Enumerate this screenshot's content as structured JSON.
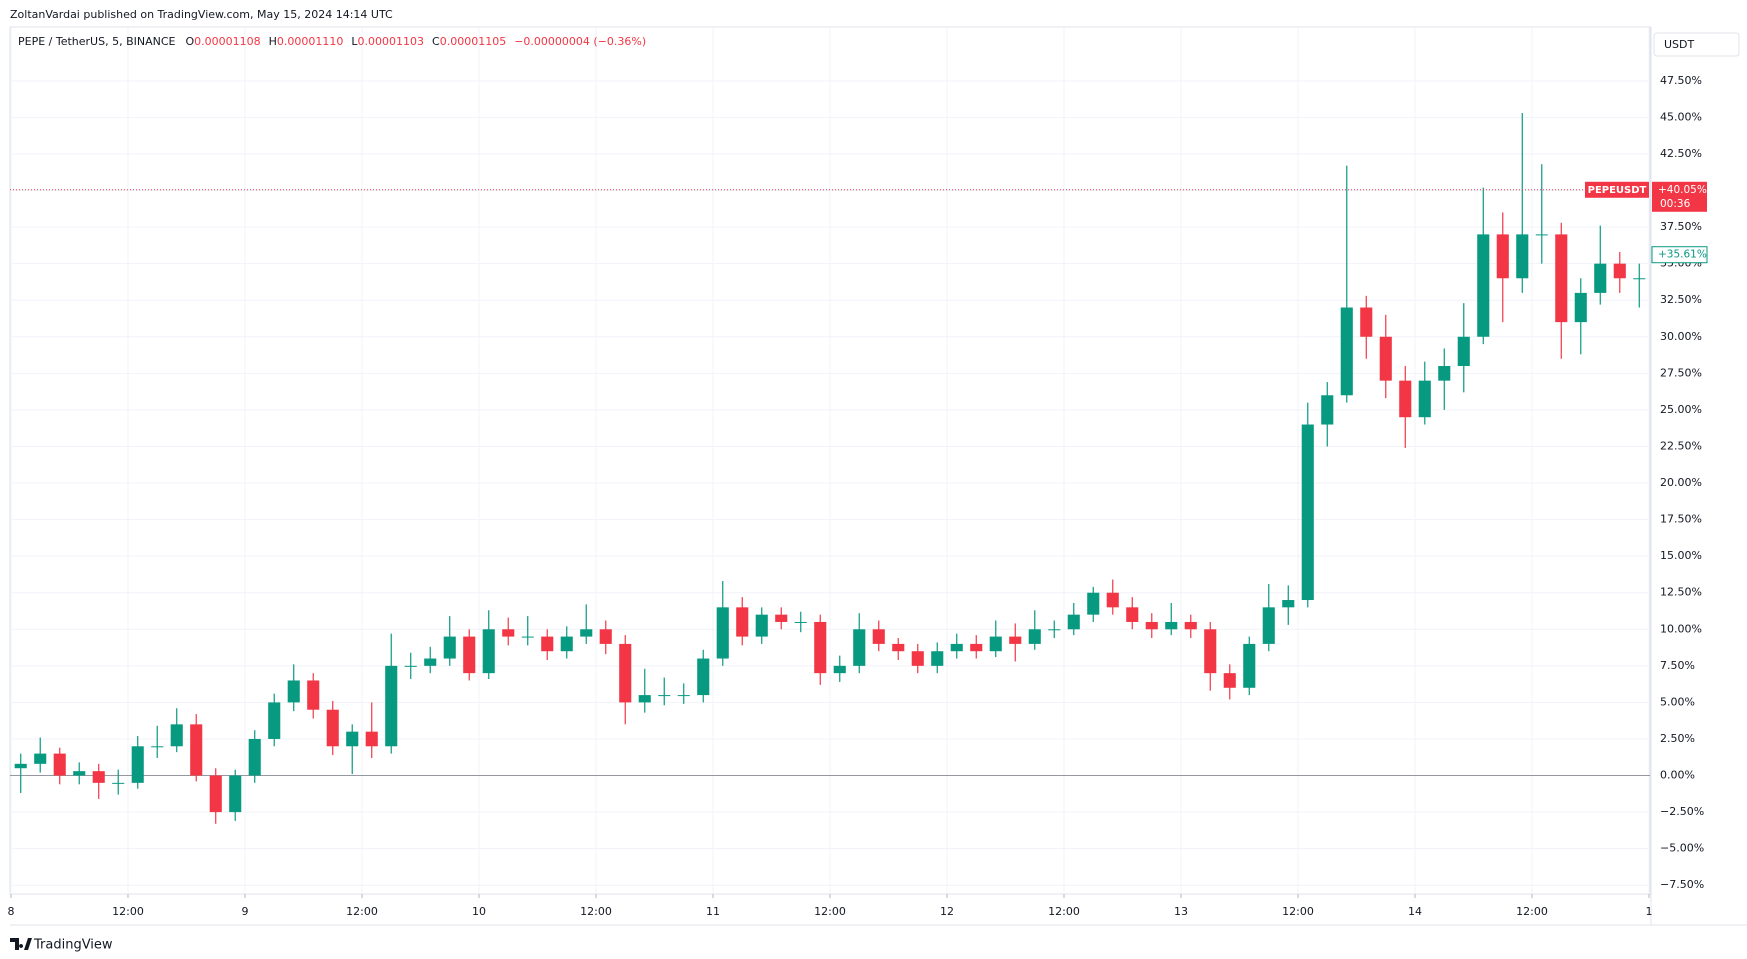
{
  "header": {
    "publisher": "ZoltanVardai published on TradingView.com, May 15, 2024 14:14 UTC",
    "symbol": "PEPE / TetherUS, 5, BINANCE",
    "ohlc": [
      {
        "key": "O",
        "value": "0.00001108"
      },
      {
        "key": "H",
        "value": "0.00001110"
      },
      {
        "key": "L",
        "value": "0.00001103"
      },
      {
        "key": "C",
        "value": "0.00001105"
      }
    ],
    "change": "−0.00000004 (−0.36%)",
    "currency": "USDT",
    "brand": "TradingView"
  },
  "chart_data": {
    "type": "candlestick",
    "up_color": "#089981",
    "down_color": "#f23645",
    "grid": true,
    "xlim": [
      -0.1,
      168.1
    ],
    "ylim": [
      -8.1,
      51.18
    ],
    "xticks": [
      {
        "value": 0,
        "label": "8"
      },
      {
        "value": 12,
        "label": "12:00"
      },
      {
        "value": 24,
        "label": "9"
      },
      {
        "value": 36,
        "label": "12:00"
      },
      {
        "value": 48,
        "label": "10"
      },
      {
        "value": 60,
        "label": "12:00"
      },
      {
        "value": 72,
        "label": "11"
      },
      {
        "value": 84,
        "label": "12:00"
      },
      {
        "value": 96,
        "label": "12"
      },
      {
        "value": 108,
        "label": "12:00"
      },
      {
        "value": 120,
        "label": "13"
      },
      {
        "value": 132,
        "label": "12:00"
      },
      {
        "value": 144,
        "label": "14"
      },
      {
        "value": 156,
        "label": "12:00"
      },
      {
        "value": 168,
        "label": "1"
      }
    ],
    "yticks": [
      {
        "value": -7.5,
        "label": "−7.50%"
      },
      {
        "value": -5,
        "label": "−5.00%"
      },
      {
        "value": -2.5,
        "label": "−2.50%"
      },
      {
        "value": 0,
        "label": "0.00%"
      },
      {
        "value": 2.5,
        "label": "2.50%"
      },
      {
        "value": 5,
        "label": "5.00%"
      },
      {
        "value": 7.5,
        "label": "7.50%"
      },
      {
        "value": 10,
        "label": "10.00%"
      },
      {
        "value": 12.5,
        "label": "12.50%"
      },
      {
        "value": 15,
        "label": "15.00%"
      },
      {
        "value": 17.5,
        "label": "17.50%"
      },
      {
        "value": 20,
        "label": "20.00%"
      },
      {
        "value": 22.5,
        "label": "22.50%"
      },
      {
        "value": 25,
        "label": "25.00%"
      },
      {
        "value": 27.5,
        "label": "27.50%"
      },
      {
        "value": 30,
        "label": "30.00%"
      },
      {
        "value": 32.5,
        "label": "32.50%"
      },
      {
        "value": 35,
        "label": "35.00%"
      },
      {
        "value": 37.5,
        "label": "37.50%"
      },
      {
        "value": 40,
        "label": "40.00%"
      },
      {
        "value": 42.5,
        "label": "42.50%"
      },
      {
        "value": 45,
        "label": "45.00%"
      },
      {
        "value": 47.5,
        "label": "47.50%"
      }
    ],
    "baseline": 0,
    "price_labels": [
      {
        "name": "PEPEUSDT",
        "value": 40.05,
        "label": "+40.05%",
        "time": "00:36",
        "color": "#f23645"
      },
      {
        "value": 35.61,
        "label": "+35.61%",
        "color": "#089981"
      }
    ],
    "x": [
      1,
      3,
      5,
      7,
      9,
      11,
      13,
      15,
      17,
      19,
      21,
      23,
      25,
      27,
      29,
      31,
      33,
      35,
      37,
      39,
      41,
      43,
      45,
      47,
      49,
      51,
      53,
      55,
      57,
      59,
      61,
      63,
      65,
      67,
      69,
      71,
      73,
      75,
      77,
      79,
      81,
      83,
      85,
      87,
      89,
      91,
      93,
      95,
      97,
      99,
      101,
      103,
      105,
      107,
      109,
      111,
      113,
      115,
      117,
      119,
      121,
      123,
      125,
      127,
      129,
      131,
      133,
      135,
      137,
      139,
      141,
      143,
      145,
      147,
      149,
      151,
      153,
      155,
      157,
      159,
      161,
      163,
      165,
      167
    ],
    "open": [
      0.5,
      0.8,
      1.5,
      0,
      0.3,
      -0.5,
      -0.5,
      2,
      2,
      3.5,
      0,
      -2.5,
      0,
      2.5,
      5,
      6.5,
      4.5,
      2,
      3,
      2,
      7.5,
      7.5,
      8,
      9.5,
      7,
      10,
      9.5,
      9.5,
      8.5,
      9.5,
      10,
      9,
      5,
      5.5,
      5.5,
      5.5,
      8,
      11.5,
      9.5,
      11,
      10.5,
      10.5,
      7,
      7.5,
      10,
      9,
      8.5,
      7.5,
      8.5,
      9,
      8.5,
      9.5,
      9,
      10,
      10,
      11,
      12.5,
      11.5,
      10.5,
      10,
      10.5,
      10,
      7,
      6,
      9,
      11.5,
      12,
      24,
      26,
      32,
      30,
      27,
      24.5,
      27,
      28,
      30,
      37,
      34,
      37,
      37,
      31,
      33,
      35,
      34
    ],
    "high": [
      1.5,
      2.6,
      1.9,
      0.9,
      0.8,
      0.4,
      2.7,
      3.4,
      4.6,
      4.2,
      0.5,
      0.4,
      3.1,
      5.6,
      7.6,
      7,
      5.1,
      3.5,
      5,
      9.7,
      8.4,
      8.8,
      10.9,
      10,
      11.3,
      10.8,
      10.9,
      10,
      10.2,
      11.7,
      10.6,
      9.6,
      7.3,
      6.7,
      6.3,
      8.6,
      13.3,
      12.2,
      11.5,
      11.5,
      11.2,
      11,
      8.2,
      11.1,
      10.6,
      9.4,
      9,
      9.1,
      9.7,
      9.6,
      10.6,
      10.4,
      11.3,
      10.6,
      11.8,
      12.9,
      13.4,
      12.2,
      11.1,
      11.8,
      11,
      10.5,
      7.6,
      9.5,
      13.1,
      13,
      25.5,
      26.9,
      41.7,
      32.8,
      31.5,
      28,
      28.3,
      29.2,
      32.3,
      40.2,
      38.5,
      45.3,
      41.8,
      37.8,
      34,
      37.6,
      35.8,
      35
    ],
    "low": [
      -1.2,
      0.2,
      -0.6,
      -0.6,
      -1.6,
      -1.3,
      -0.9,
      1.2,
      1.6,
      -0.4,
      -3.3,
      -3.1,
      -0.5,
      2,
      4.4,
      3.9,
      1.4,
      0.1,
      1.2,
      1.5,
      6.6,
      7,
      7.5,
      6.5,
      6.6,
      8.9,
      8.9,
      7.9,
      8,
      9,
      8.3,
      3.5,
      4.3,
      4.8,
      4.9,
      5,
      7.5,
      8.9,
      9,
      10,
      9.8,
      6.2,
      6.4,
      7,
      8.5,
      7.9,
      7,
      7,
      8,
      8,
      8.1,
      7.8,
      8.6,
      9.4,
      9.6,
      10.5,
      11,
      10,
      9.4,
      9.6,
      9.4,
      5.8,
      5.2,
      5.5,
      8.5,
      10.3,
      11.5,
      22.5,
      25.5,
      28.5,
      25.8,
      22.4,
      24,
      25,
      26.2,
      29.5,
      31,
      33,
      35,
      28.5,
      28.8,
      32.2,
      33,
      32
    ],
    "close": [
      0.8,
      1.5,
      0,
      0.3,
      -0.5,
      -0.5,
      2,
      2,
      3.5,
      0,
      -2.5,
      0,
      2.5,
      5,
      6.5,
      4.5,
      2,
      3,
      2,
      7.5,
      7.5,
      8,
      9.5,
      7,
      10,
      9.5,
      9.5,
      8.5,
      9.5,
      10,
      9,
      5,
      5.5,
      5.5,
      5.5,
      8,
      11.5,
      9.5,
      11,
      10.5,
      10.5,
      7,
      7.5,
      10,
      9,
      8.5,
      7.5,
      8.5,
      9,
      8.5,
      9.5,
      9,
      10,
      10,
      11,
      12.5,
      11.5,
      10.5,
      10,
      10.5,
      10,
      7,
      6,
      9,
      11.5,
      12,
      24,
      26,
      32,
      30,
      27,
      24.5,
      27,
      28,
      30,
      37,
      34,
      37,
      37,
      31,
      33,
      35,
      34,
      34
    ]
  }
}
